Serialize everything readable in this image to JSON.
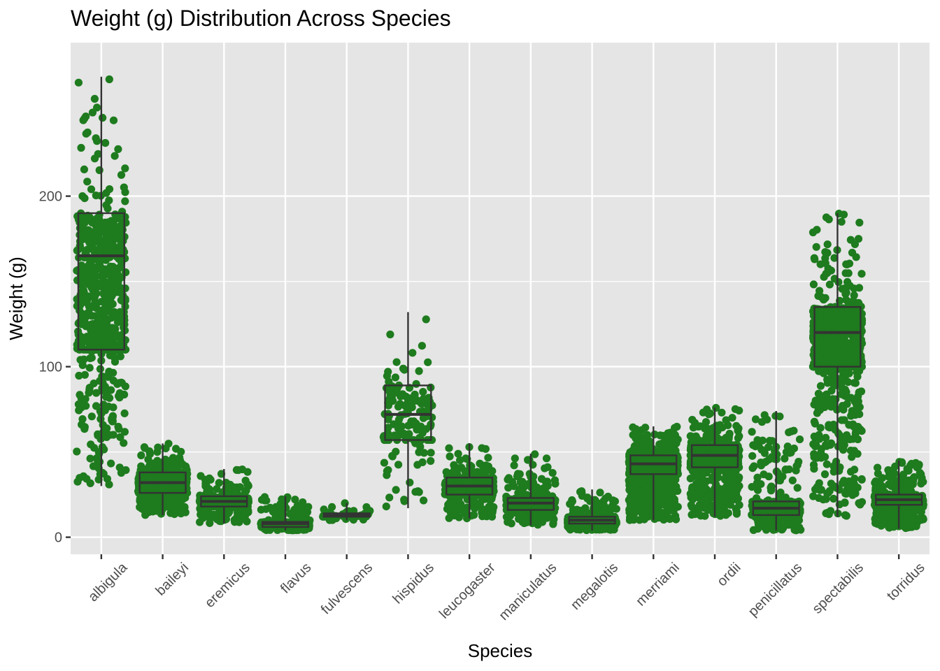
{
  "chart_data": {
    "type": "boxplot+jitter",
    "title": "Weight (g) Distribution Across Species",
    "xlabel": "Species",
    "ylabel": "Weight (g)",
    "ylim": [
      -10,
      290
    ],
    "yticks": [
      0,
      100,
      200
    ],
    "grid": true,
    "point_color": "#1e7b1e",
    "panel_background": "#e5e5e5",
    "gridline_color": "#ffffff",
    "box_color": "#333333",
    "categories": [
      "albigula",
      "baileyi",
      "eremicus",
      "flavus",
      "fulvescens",
      "hispidus",
      "leucogaster",
      "maniculatus",
      "megalotis",
      "merriami",
      "ordii",
      "penicillatus",
      "spectabilis",
      "torridus"
    ],
    "boxes": [
      {
        "category": "albigula",
        "min": 30,
        "q1": 110,
        "median": 165,
        "q3": 190,
        "max": 270
      },
      {
        "category": "baileyi",
        "min": 13,
        "q1": 26,
        "median": 32,
        "q3": 38,
        "max": 55
      },
      {
        "category": "eremicus",
        "min": 8,
        "q1": 18,
        "median": 21,
        "q3": 24,
        "max": 40
      },
      {
        "category": "flavus",
        "min": 4,
        "q1": 6,
        "median": 8,
        "q3": 9,
        "max": 24
      },
      {
        "category": "fulvescens",
        "min": 10,
        "q1": 12,
        "median": 13,
        "q3": 14,
        "max": 20
      },
      {
        "category": "hispidus",
        "min": 17,
        "q1": 57,
        "median": 72,
        "q3": 89,
        "max": 132
      },
      {
        "category": "leucogaster",
        "min": 11,
        "q1": 25,
        "median": 30,
        "q3": 35,
        "max": 55
      },
      {
        "category": "maniculatus",
        "min": 7,
        "q1": 16,
        "median": 20,
        "q3": 23,
        "max": 49
      },
      {
        "category": "megalotis",
        "min": 4,
        "q1": 8,
        "median": 10,
        "q3": 12,
        "max": 28
      },
      {
        "category": "merriami",
        "min": 10,
        "q1": 37,
        "median": 43,
        "q3": 48,
        "max": 65
      },
      {
        "category": "ordii",
        "min": 12,
        "q1": 41,
        "median": 48,
        "q3": 54,
        "max": 76
      },
      {
        "category": "penicillatus",
        "min": 4,
        "q1": 13,
        "median": 17,
        "q3": 21,
        "max": 74
      },
      {
        "category": "spectabilis",
        "min": 12,
        "q1": 100,
        "median": 120,
        "q3": 135,
        "max": 190
      },
      {
        "category": "torridus",
        "min": 5,
        "q1": 19,
        "median": 22,
        "q3": 25,
        "max": 45
      }
    ]
  }
}
